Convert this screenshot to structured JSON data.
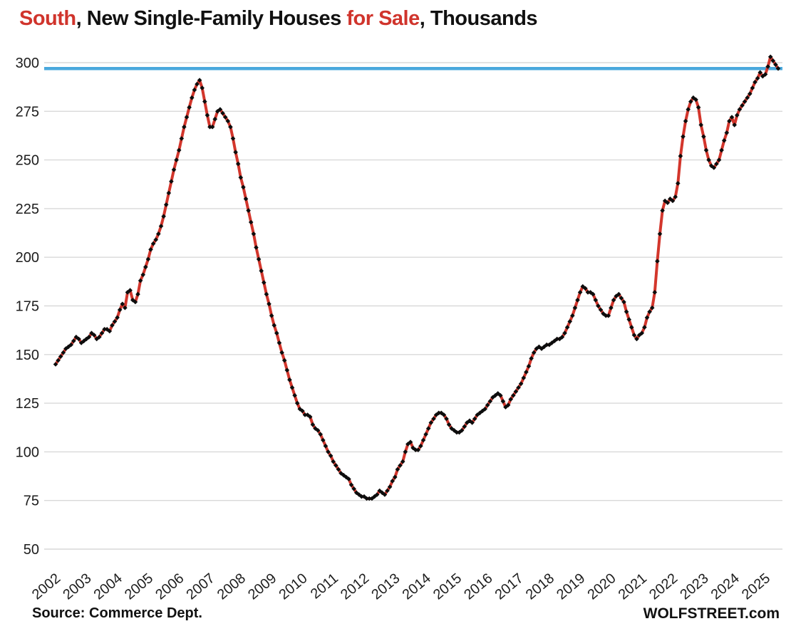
{
  "title": {
    "segments": [
      {
        "text": "South",
        "color": "#d0342c"
      },
      {
        "text": ", New Single-Family Houses ",
        "color": "#111111"
      },
      {
        "text": "for Sale",
        "color": "#d0342c"
      },
      {
        "text": ", Thousands",
        "color": "#111111"
      }
    ]
  },
  "footer": {
    "source": "Source: Commerce Dept.",
    "brand": "WOLFSTREET.com"
  },
  "chart_data": {
    "type": "line",
    "title": "South, New Single-Family Houses for Sale, Thousands",
    "xlabel": "",
    "ylabel": "",
    "grid": "horizontal",
    "legend": "none",
    "y_axis": {
      "min": 50,
      "max": 300,
      "step": 25,
      "tick_labels": [
        "300",
        "275",
        "250",
        "225",
        "200",
        "175",
        "150",
        "125",
        "100",
        "75",
        "50"
      ]
    },
    "x_axis": {
      "start_year": 2002,
      "end_year": 2025,
      "tick_labels": [
        "2002",
        "2003",
        "2004",
        "2005",
        "2006",
        "2007",
        "2008",
        "2009",
        "2010",
        "2011",
        "2012",
        "2013",
        "2014",
        "2015",
        "2016",
        "2017",
        "2018",
        "2019",
        "2020",
        "2021",
        "2022",
        "2023",
        "2024",
        "2025"
      ]
    },
    "reference_line": {
      "value": 297,
      "color": "#4aa8dd"
    },
    "series": [
      {
        "name": "New single-family houses for sale, South",
        "frequency": "monthly",
        "start": "2002-01",
        "line_color": "#d3362c",
        "marker_color": "#0d0d0d",
        "values": [
          145,
          147,
          149,
          151,
          153,
          154,
          155,
          157,
          159,
          158,
          156,
          157,
          158,
          159,
          161,
          160,
          158,
          159,
          161,
          163,
          163,
          162,
          165,
          167,
          169,
          173,
          176,
          174,
          182,
          183,
          178,
          177,
          181,
          188,
          191,
          195,
          199,
          204,
          207,
          209,
          212,
          216,
          221,
          227,
          233,
          239,
          245,
          250,
          255,
          261,
          267,
          272,
          277,
          282,
          286,
          289,
          291,
          287,
          280,
          273,
          267,
          267,
          271,
          275,
          276,
          274,
          272,
          270,
          267,
          261,
          254,
          248,
          241,
          236,
          230,
          224,
          218,
          212,
          205,
          199,
          193,
          187,
          181,
          176,
          170,
          165,
          161,
          156,
          151,
          147,
          142,
          137,
          133,
          129,
          125,
          122,
          121,
          119,
          119,
          118,
          114,
          112,
          111,
          109,
          106,
          103,
          100,
          98,
          95,
          93,
          91,
          89,
          88,
          87,
          86,
          83,
          81,
          79,
          78,
          77,
          77,
          76,
          76,
          76,
          77,
          78,
          80,
          79,
          78,
          80,
          82,
          85,
          87,
          91,
          93,
          95,
          100,
          104,
          105,
          102,
          101,
          101,
          103,
          106,
          109,
          112,
          115,
          117,
          119,
          120,
          120,
          119,
          117,
          114,
          112,
          111,
          110,
          110,
          111,
          113,
          115,
          116,
          115,
          117,
          119,
          120,
          121,
          122,
          124,
          126,
          128,
          129,
          130,
          129,
          126,
          123,
          124,
          127,
          129,
          131,
          133,
          135,
          138,
          141,
          144,
          148,
          151,
          153,
          154,
          153,
          154,
          155,
          155,
          156,
          157,
          158,
          158,
          159,
          161,
          164,
          167,
          170,
          174,
          178,
          182,
          185,
          184,
          182,
          182,
          181,
          178,
          175,
          173,
          171,
          170,
          170,
          174,
          178,
          180,
          181,
          179,
          177,
          172,
          168,
          164,
          160,
          158,
          160,
          161,
          164,
          169,
          172,
          174,
          182,
          198,
          212,
          224,
          229,
          228,
          230,
          229,
          231,
          238,
          252,
          262,
          270,
          276,
          280,
          282,
          281,
          277,
          268,
          262,
          255,
          250,
          247,
          246,
          248,
          250,
          255,
          260,
          264,
          270,
          272,
          268,
          273,
          276,
          278,
          280,
          282,
          284,
          287,
          290,
          292,
          295,
          293,
          294,
          298,
          303,
          301,
          299,
          297
        ]
      }
    ],
    "colors": {
      "grid": "#d9d9d9",
      "axis_text": "#1d1d1d"
    }
  }
}
